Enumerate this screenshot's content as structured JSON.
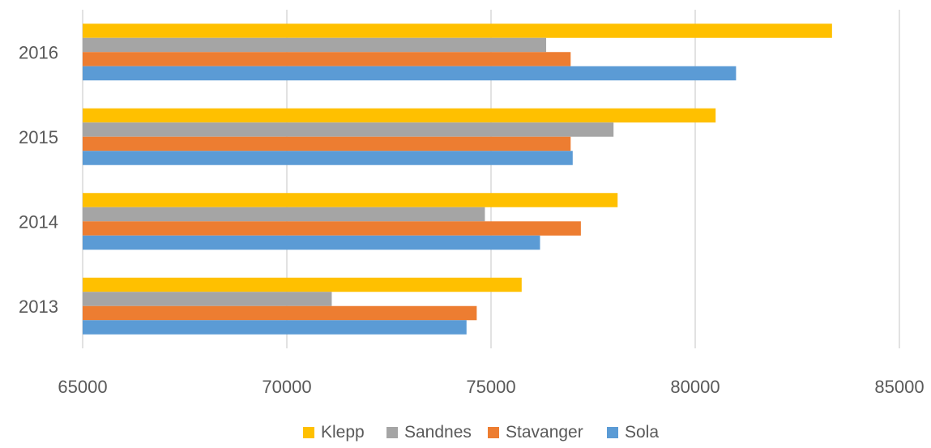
{
  "chart_data": {
    "type": "bar",
    "orientation": "horizontal",
    "categories": [
      "2013",
      "2014",
      "2015",
      "2016"
    ],
    "series": [
      {
        "name": "Klepp",
        "color": "#FFC000",
        "values": [
          75750,
          78100,
          80500,
          83350
        ]
      },
      {
        "name": "Sandnes",
        "color": "#A5A5A5",
        "values": [
          71100,
          74850,
          78000,
          76350
        ]
      },
      {
        "name": "Stavanger",
        "color": "#ED7D31",
        "values": [
          74650,
          77200,
          76950,
          76950
        ]
      },
      {
        "name": "Sola",
        "color": "#5B9BD5",
        "values": [
          74400,
          76200,
          77000,
          81000
        ]
      }
    ],
    "xlim": [
      65000,
      85000
    ],
    "xticks": [
      "65000",
      "70000",
      "75000",
      "80000",
      "85000"
    ],
    "grid": "vertical",
    "legend_position": "bottom"
  }
}
